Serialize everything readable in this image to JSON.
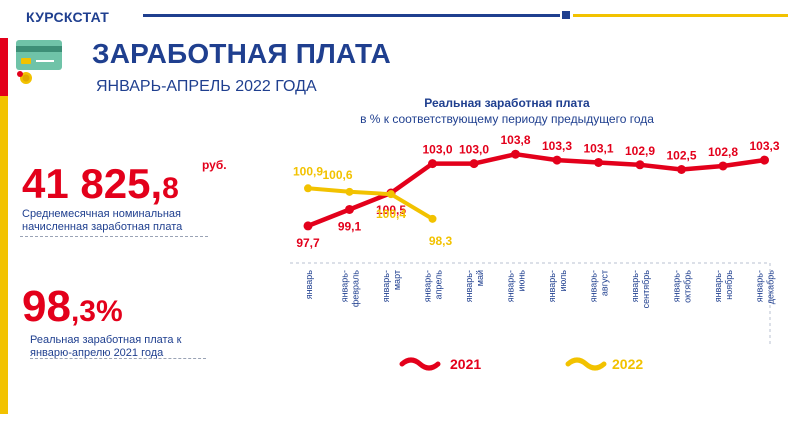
{
  "header": {
    "brand": "КУРСКСТАТ",
    "title": "ЗАРАБОТНАЯ ПЛАТА",
    "subtitle": "ЯНВАРЬ-АПРЕЛЬ 2022 ГОДА"
  },
  "kpi": {
    "wage_int": "41 825,",
    "wage_dec": "8",
    "wage_unit": "руб.",
    "wage_caption": "Среднемесячная номинальная начисленная заработная плата",
    "real_int": "98",
    "real_dec": ",3%",
    "real_caption": "Реальная заработная плата к январю-апрелю 2021 года"
  },
  "colors": {
    "navy": "#1f3f8f",
    "red": "#e3001b",
    "yellow": "#f2c200"
  },
  "chart_data": {
    "type": "line",
    "title": "Реальная заработная плата",
    "subtitle": "в % к соответствующему периоду предыдущего года",
    "categories": [
      "январь",
      "январь-февраль",
      "январь-март",
      "январь-апрель",
      "январь-май",
      "январь-июнь",
      "январь-июль",
      "январь-август",
      "январь-сентябрь",
      "январь-октябрь",
      "январь-ноябрь",
      "январь-декабрь"
    ],
    "series": [
      {
        "name": "2021",
        "color": "#e3001b",
        "values": [
          97.7,
          99.1,
          100.5,
          103.0,
          103.0,
          103.8,
          103.3,
          103.1,
          102.9,
          102.5,
          102.8,
          103.3
        ]
      },
      {
        "name": "2022",
        "color": "#f2c200",
        "values": [
          100.9,
          100.6,
          100.4,
          98.3,
          null,
          null,
          null,
          null,
          null,
          null,
          null,
          null
        ]
      }
    ],
    "data_labels": {
      "2021": [
        "97,7",
        "99,1",
        "100,5",
        "103,0",
        "103,0",
        "103,8",
        "103,3",
        "103,1",
        "102,9",
        "102,5",
        "102,8",
        "103,3"
      ],
      "2022": [
        "100,9",
        "100,6",
        "100,4",
        "98,3"
      ]
    },
    "ylim": [
      96.5,
      104.5
    ],
    "grid": false,
    "legend": "bottom"
  }
}
